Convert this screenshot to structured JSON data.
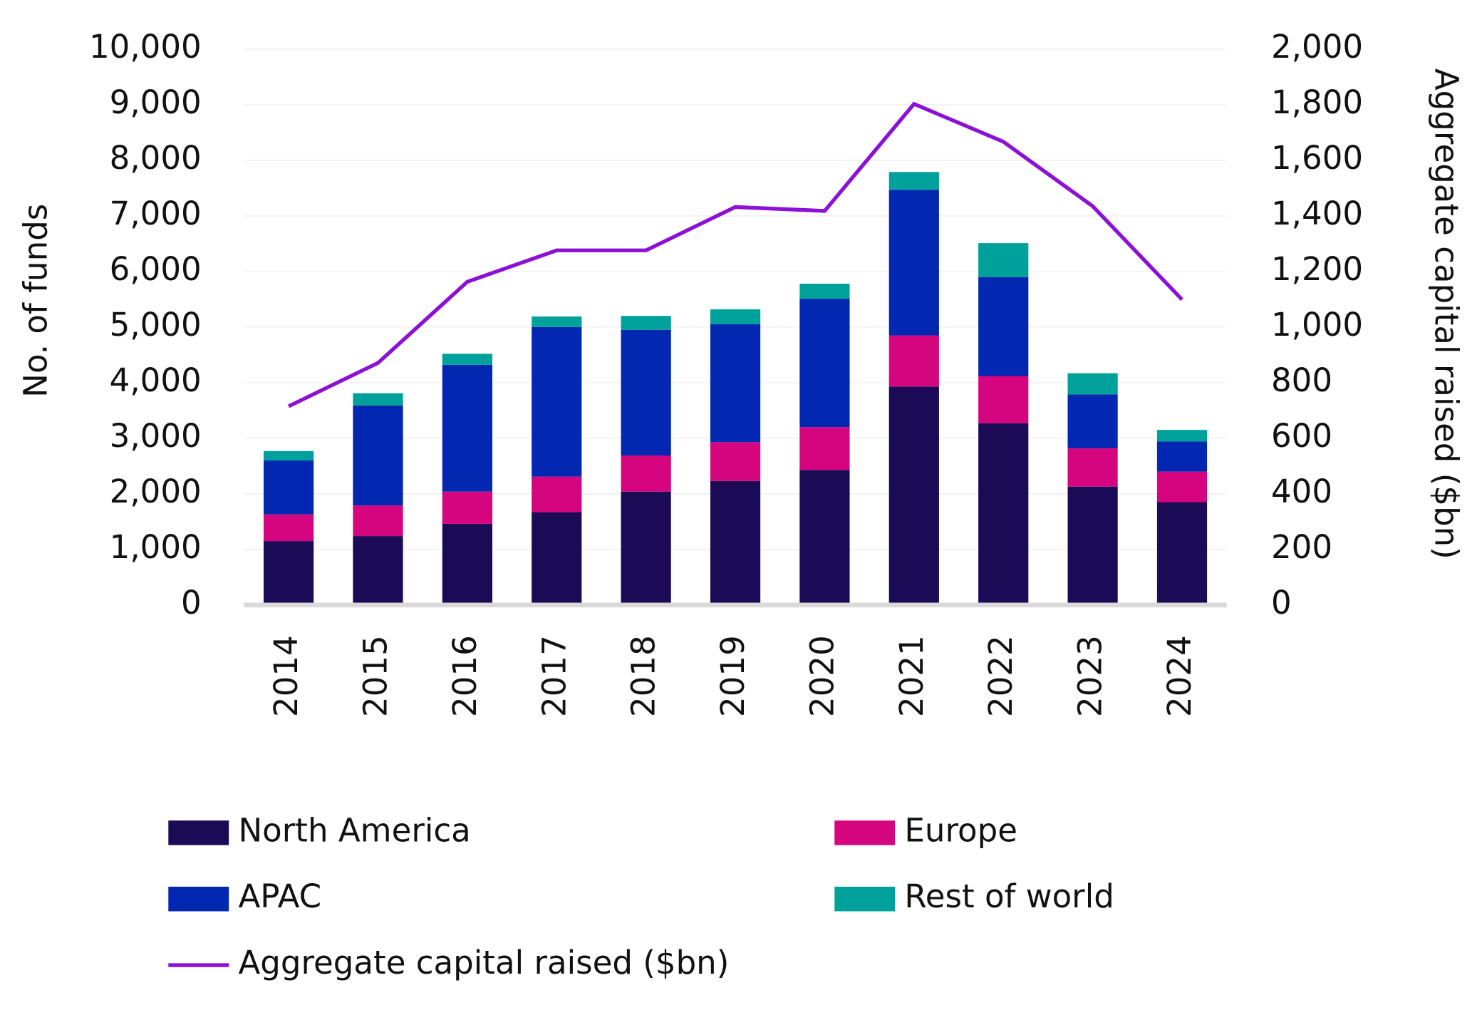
{
  "chart_data": {
    "type": "bar",
    "stacked": true,
    "categories": [
      "2014",
      "2015",
      "2016",
      "2017",
      "2018",
      "2019",
      "2020",
      "2021",
      "2022",
      "2023",
      "2024"
    ],
    "y_label": "No. of funds",
    "y2_label": "Aggregate capital raised ($bn)",
    "ylim": [
      0,
      10000
    ],
    "yticks": [
      0,
      {
        "value": 1000,
        "label": "1,000"
      },
      {
        "value": 2000,
        "label": "2,000"
      },
      {
        "value": 3000,
        "label": "3,000"
      },
      {
        "value": 4000,
        "label": "4,000"
      },
      {
        "value": 5000,
        "label": "5,000"
      },
      {
        "value": 6000,
        "label": "6,000"
      },
      {
        "value": 7000,
        "label": "7,000"
      },
      {
        "value": 8000,
        "label": "8,000"
      },
      {
        "value": 9000,
        "label": "9,000"
      },
      {
        "value": 10000,
        "label": "10,000"
      }
    ],
    "y2lim": [
      0,
      2000
    ],
    "y2ticks": [
      0,
      200,
      400,
      600,
      800,
      {
        "value": 1000,
        "label": "1,000"
      },
      {
        "value": 1200,
        "label": "1,200"
      },
      {
        "value": 1400,
        "label": "1,400"
      },
      {
        "value": 1600,
        "label": "1,600"
      },
      {
        "value": 1800,
        "label": "1,800"
      },
      {
        "value": 2000,
        "label": "2,000"
      }
    ],
    "grid": true,
    "legend": "bottom",
    "series": [
      {
        "name": "North America",
        "type": "bar",
        "color": "#1b0a55",
        "values": [
          1150,
          1240,
          1460,
          1670,
          2040,
          2230,
          2430,
          3930,
          3270,
          2130,
          1850
        ]
      },
      {
        "name": "Europe",
        "type": "bar",
        "color": "#d5047f",
        "values": [
          480,
          550,
          580,
          640,
          650,
          700,
          770,
          920,
          850,
          690,
          550
        ]
      },
      {
        "name": "APAC",
        "type": "bar",
        "color": "#0227b1",
        "values": [
          970,
          1800,
          2280,
          2690,
          2260,
          2120,
          2310,
          2620,
          1780,
          970,
          540
        ]
      },
      {
        "name": "Rest of world",
        "type": "bar",
        "color": "#00a19a",
        "values": [
          170,
          220,
          200,
          190,
          250,
          270,
          270,
          320,
          610,
          380,
          210
        ]
      },
      {
        "name": "Aggregate capital raised ($bn)",
        "type": "line",
        "axis": "y2",
        "color": "#8c10d6",
        "values": [
          715,
          871,
          1163,
          1276,
          1276,
          1432,
          1418,
          1803,
          1667,
          1435,
          1099
        ]
      }
    ]
  }
}
